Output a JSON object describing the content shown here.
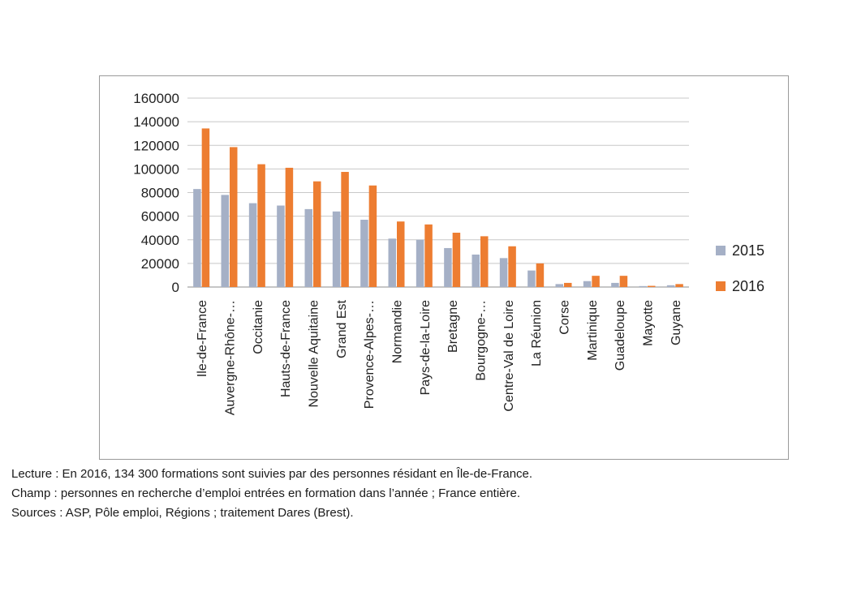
{
  "chart_data": {
    "type": "bar",
    "title": "",
    "xlabel": "",
    "ylabel": "",
    "ylim": [
      0,
      160000
    ],
    "yticks": [
      0,
      20000,
      40000,
      60000,
      80000,
      100000,
      120000,
      140000,
      160000
    ],
    "grid": true,
    "legend_position": "right",
    "categories": [
      "Ile-de-France",
      "Auvergne-Rhône-…",
      "Occitanie",
      "Hauts-de-France",
      "Nouvelle Aquitaine",
      "Grand Est",
      "Provence-Alpes-…",
      "Normandie",
      "Pays-de-la-Loire",
      "Bretagne",
      "Bourgogne-…",
      "Centre-Val de Loire",
      "La Réunion",
      "Corse",
      "Martinique",
      "Guadeloupe",
      "Mayotte",
      "Guyane"
    ],
    "series": [
      {
        "name": "2015",
        "color": "#a5b0c6",
        "values": [
          83000,
          78000,
          71000,
          69000,
          66000,
          64000,
          57000,
          41000,
          40000,
          33000,
          27500,
          24500,
          14000,
          2500,
          5000,
          3500,
          800,
          1500
        ]
      },
      {
        "name": "2016",
        "color": "#ed7d31",
        "values": [
          134300,
          118500,
          104000,
          101000,
          89500,
          97500,
          86000,
          55500,
          53000,
          46000,
          43000,
          34500,
          20000,
          3500,
          9500,
          9500,
          1000,
          2500
        ]
      }
    ]
  },
  "notes": {
    "lecture": "Lecture : En 2016, 134 300 formations sont suivies par des personnes résidant en Île-de-France.",
    "champ": "Champ : personnes en recherche d’emploi entrées en formation dans l’année ; France entière.",
    "sources": "Sources : ASP, Pôle emploi, Régions ; traitement Dares (Brest)."
  }
}
